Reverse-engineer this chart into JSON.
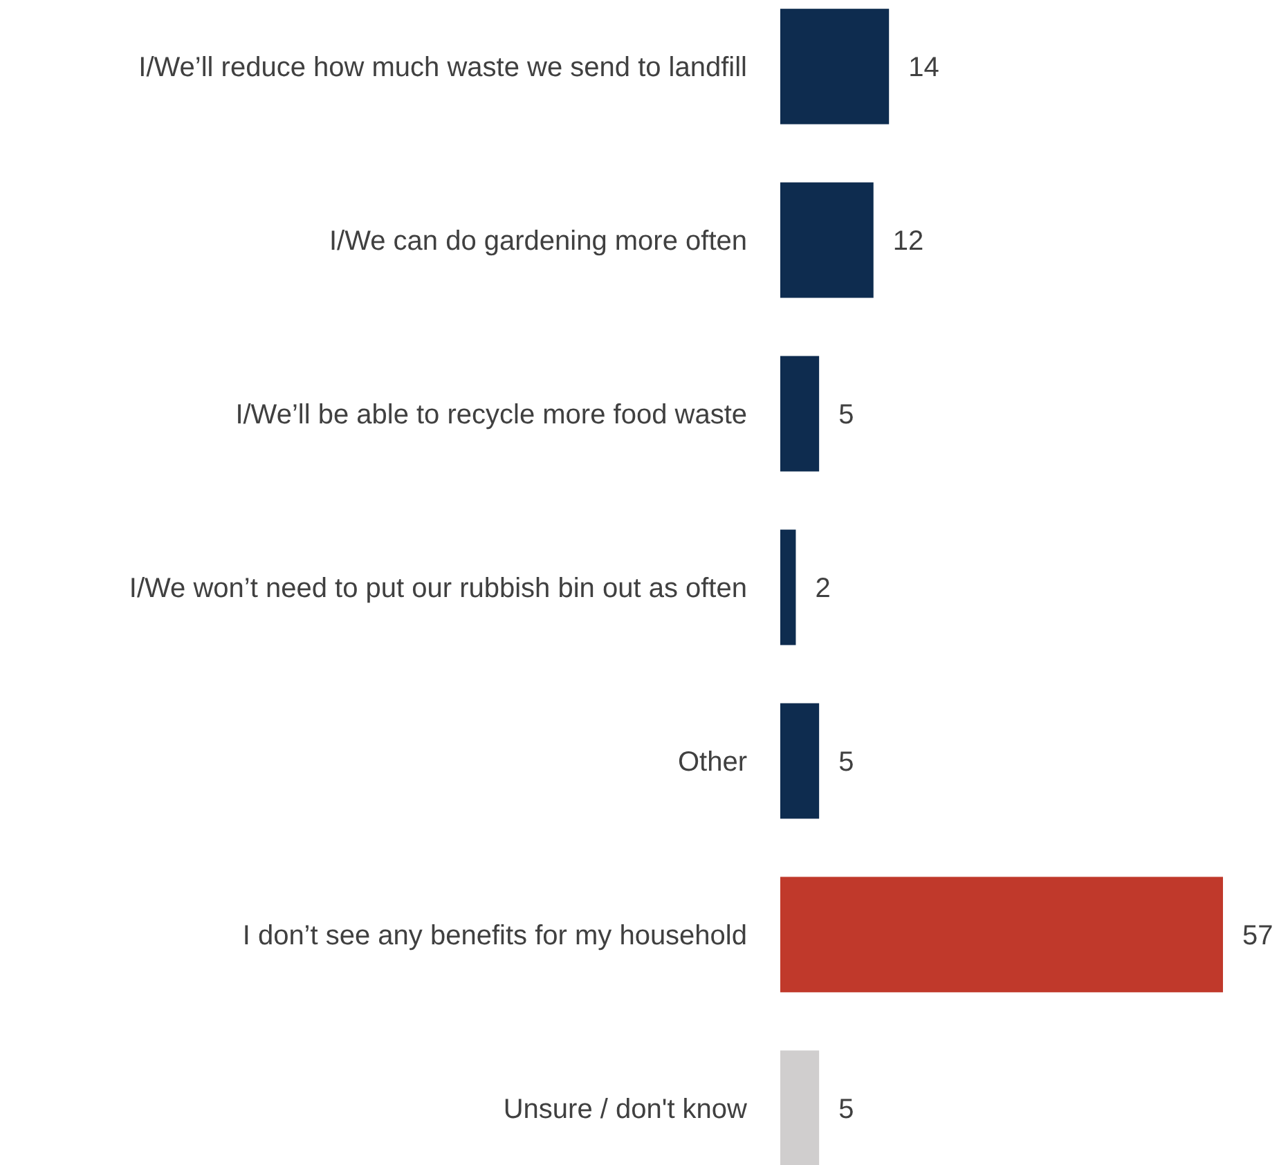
{
  "chart_data": {
    "type": "bar",
    "orientation": "horizontal",
    "categories": [
      "I/We’ll reduce how much waste we send to landfill",
      "I/We can do gardening more often",
      "I/We’ll be able to recycle more food waste",
      "I/We won’t need to put our rubbish bin out as often",
      "Other",
      "I don’t see any benefits for my household",
      "Unsure / don't know"
    ],
    "values": [
      14,
      12,
      5,
      2,
      5,
      57,
      5
    ],
    "colors": [
      "#0e2c4f",
      "#0e2c4f",
      "#0e2c4f",
      "#0e2c4f",
      "#0e2c4f",
      "#c0392b",
      "#d0cece"
    ],
    "data_labels": true
  }
}
